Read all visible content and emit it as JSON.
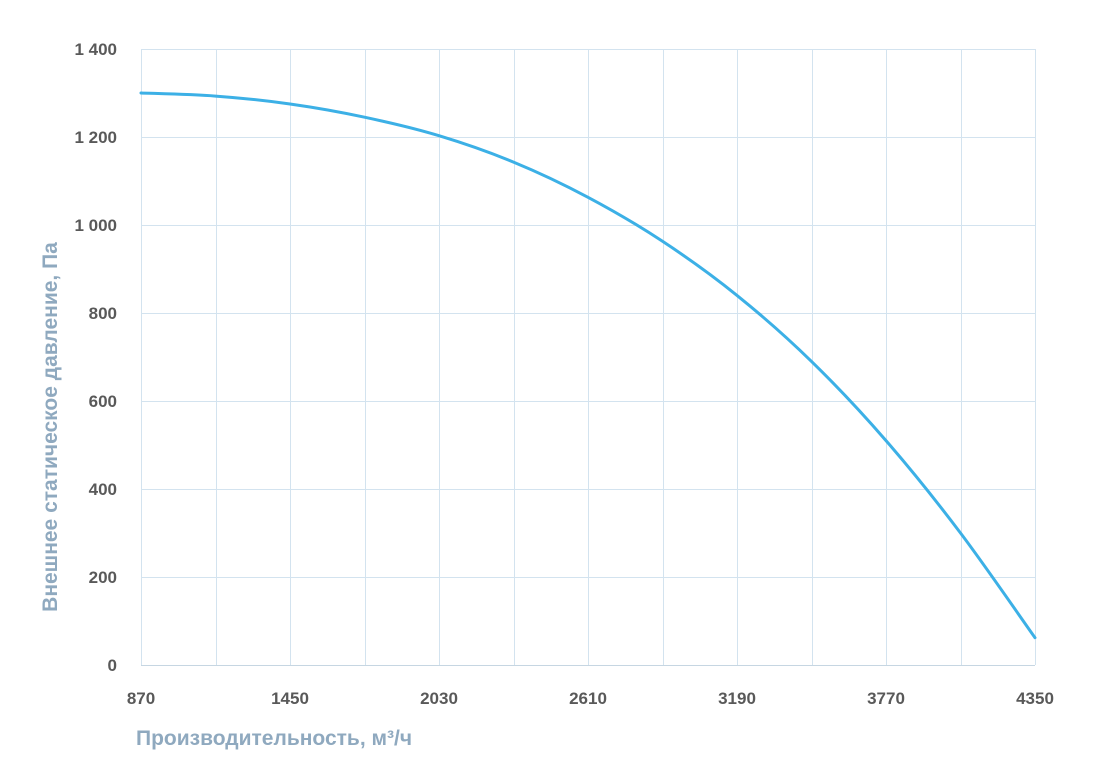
{
  "chart_data": {
    "type": "line",
    "xlabel": "Производительность, м³/ч",
    "ylabel": "Внешнее статическое давление, Па",
    "xlim": [
      870,
      4350
    ],
    "ylim": [
      0,
      1400
    ],
    "x_ticks": [
      870,
      1450,
      2030,
      2610,
      3190,
      3770,
      4350
    ],
    "x_tick_labels": [
      "870",
      "1450",
      "2030",
      "2610",
      "3190",
      "3770",
      "4350"
    ],
    "x_minor_grid_step": 290,
    "y_ticks": [
      0,
      200,
      400,
      600,
      800,
      1000,
      1200,
      1400
    ],
    "y_tick_labels": [
      "0",
      "200",
      "400",
      "600",
      "800",
      "1 000",
      "1 200",
      "1 400"
    ],
    "grid": true,
    "series": [
      {
        "color": "#3cb0e6",
        "x": [
          870,
          1160,
          1450,
          1740,
          2030,
          2320,
          2610,
          2900,
          3190,
          3480,
          3770,
          4060,
          4350
        ],
        "y": [
          1300,
          1293,
          1275,
          1245,
          1203,
          1143,
          1063,
          963,
          840,
          690,
          510,
          300,
          62
        ]
      }
    ],
    "colors": {
      "line": "#3cb0e6",
      "grid": "#d3e3ef",
      "tick_text": "#595959",
      "axis_title": "#8fa9bf"
    }
  }
}
